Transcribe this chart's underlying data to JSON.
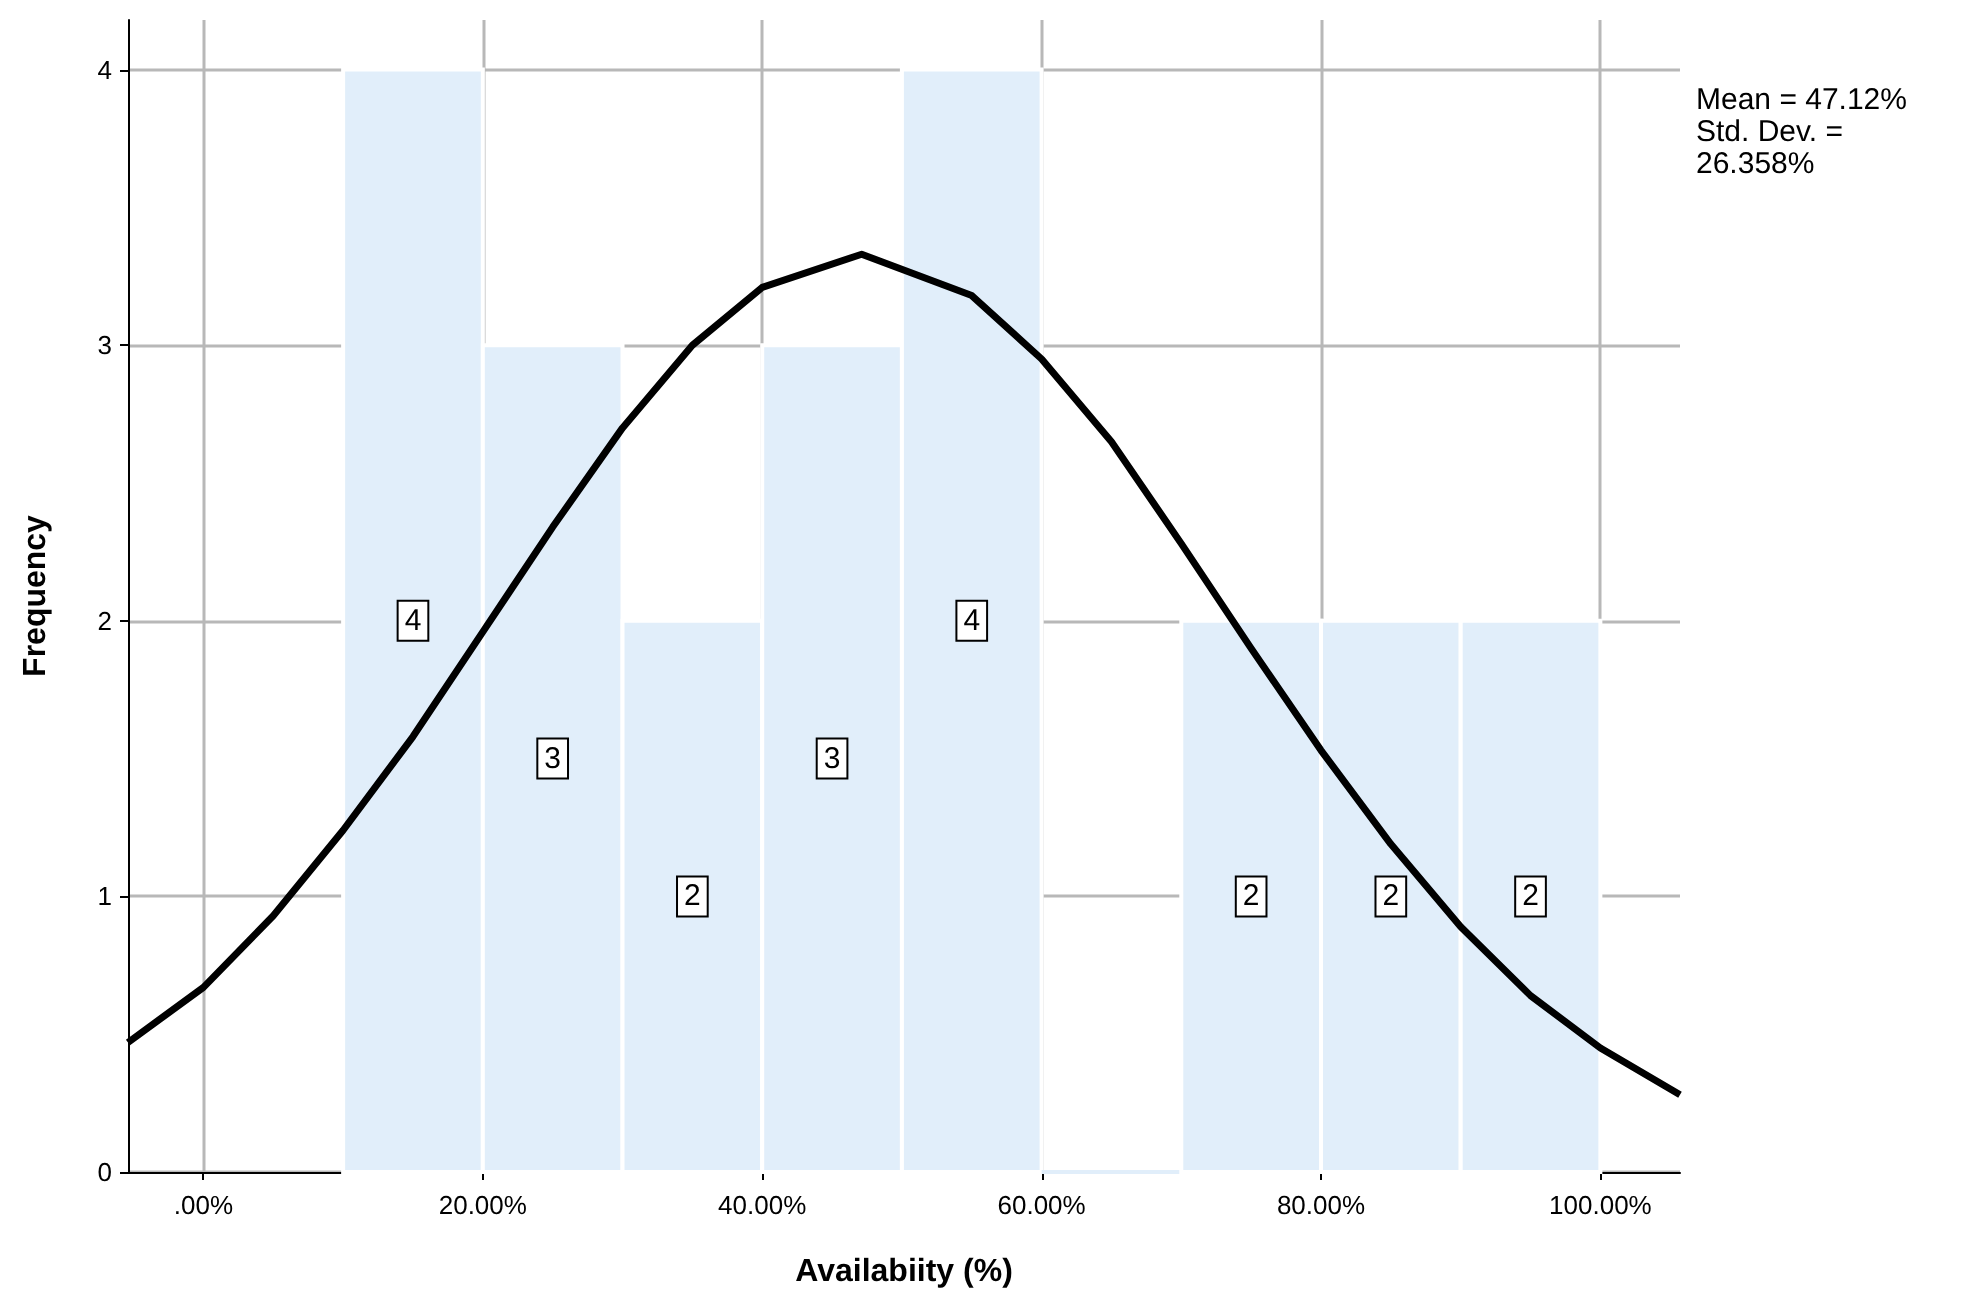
{
  "chart_data": {
    "type": "histogram",
    "xlabel": "Availabiity (%)",
    "ylabel": "Frequency",
    "annotations": [
      "Mean = 47.12%",
      "Std. Dev. = 26.358%"
    ],
    "xlim": [
      -5.4,
      105.7
    ],
    "ylim": [
      0,
      4.18
    ],
    "xticks": [
      {
        "value": 0,
        "label": ".00%"
      },
      {
        "value": 20,
        "label": "20.00%"
      },
      {
        "value": 40,
        "label": "40.00%"
      },
      {
        "value": 60,
        "label": "60.00%"
      },
      {
        "value": 80,
        "label": "80.00%"
      },
      {
        "value": 100,
        "label": "100.00%"
      }
    ],
    "yticks": [
      0,
      1,
      2,
      3,
      4
    ],
    "grid": true,
    "marker": "none",
    "series": [
      {
        "type": "histogram",
        "color": "#e1eefa",
        "bins": [
          10,
          20,
          30,
          40,
          50,
          60,
          70,
          80,
          90,
          100
        ],
        "values": [
          4,
          3,
          2,
          3,
          4,
          0,
          2,
          2,
          2
        ],
        "value_labels": [
          "4",
          "3",
          "2",
          "3",
          "4",
          null,
          "2",
          "2",
          "2"
        ]
      },
      {
        "type": "line",
        "color": "#000000",
        "x": [
          -5.4,
          0,
          5,
          10,
          15,
          20,
          25,
          30,
          35,
          40,
          47.12,
          55,
          60,
          65,
          70,
          75,
          80,
          85,
          90,
          95,
          100,
          105.7
        ],
        "values": [
          0.47,
          0.67,
          0.93,
          1.24,
          1.58,
          1.96,
          2.34,
          2.7,
          3.0,
          3.21,
          3.33,
          3.18,
          2.95,
          2.65,
          2.28,
          1.9,
          1.53,
          1.19,
          0.89,
          0.64,
          0.45,
          0.28
        ]
      }
    ]
  }
}
